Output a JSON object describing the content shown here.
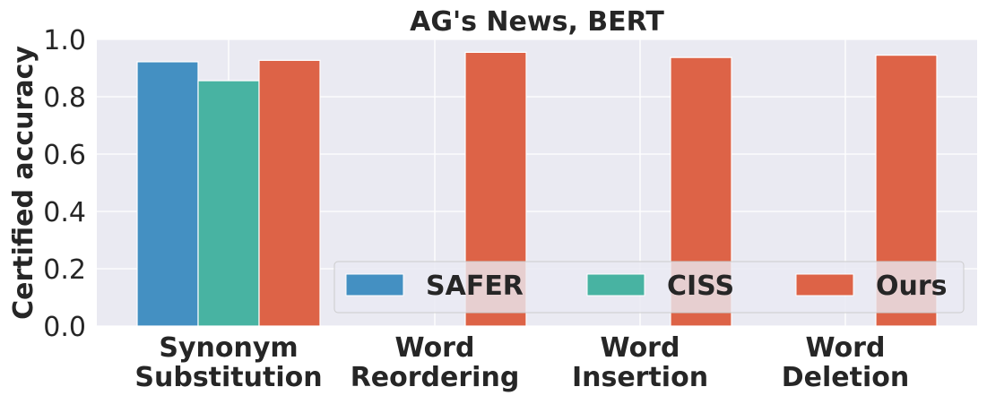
{
  "chart_data": {
    "type": "bar",
    "title": "AG's News, BERT",
    "xlabel": "",
    "ylabel": "Certified accuracy",
    "ylim": [
      0,
      1.0
    ],
    "yticks": [
      "0.0",
      "0.2",
      "0.4",
      "0.6",
      "0.8",
      "1.0"
    ],
    "grid": true,
    "legend_position": "lower-right",
    "categories": [
      [
        "Synonym",
        "Substitution"
      ],
      [
        "Word",
        "Reordering"
      ],
      [
        "Word",
        "Insertion"
      ],
      [
        "Word",
        "Deletion"
      ]
    ],
    "series": [
      {
        "name": "SAFER",
        "color": "#4490c2",
        "values": [
          0.922,
          null,
          null,
          null
        ]
      },
      {
        "name": "CISS",
        "color": "#48b3a2",
        "values": [
          0.856,
          null,
          null,
          null
        ]
      },
      {
        "name": "Ours",
        "color": "#dd6347",
        "values": [
          0.927,
          0.955,
          0.937,
          0.945
        ]
      }
    ]
  }
}
